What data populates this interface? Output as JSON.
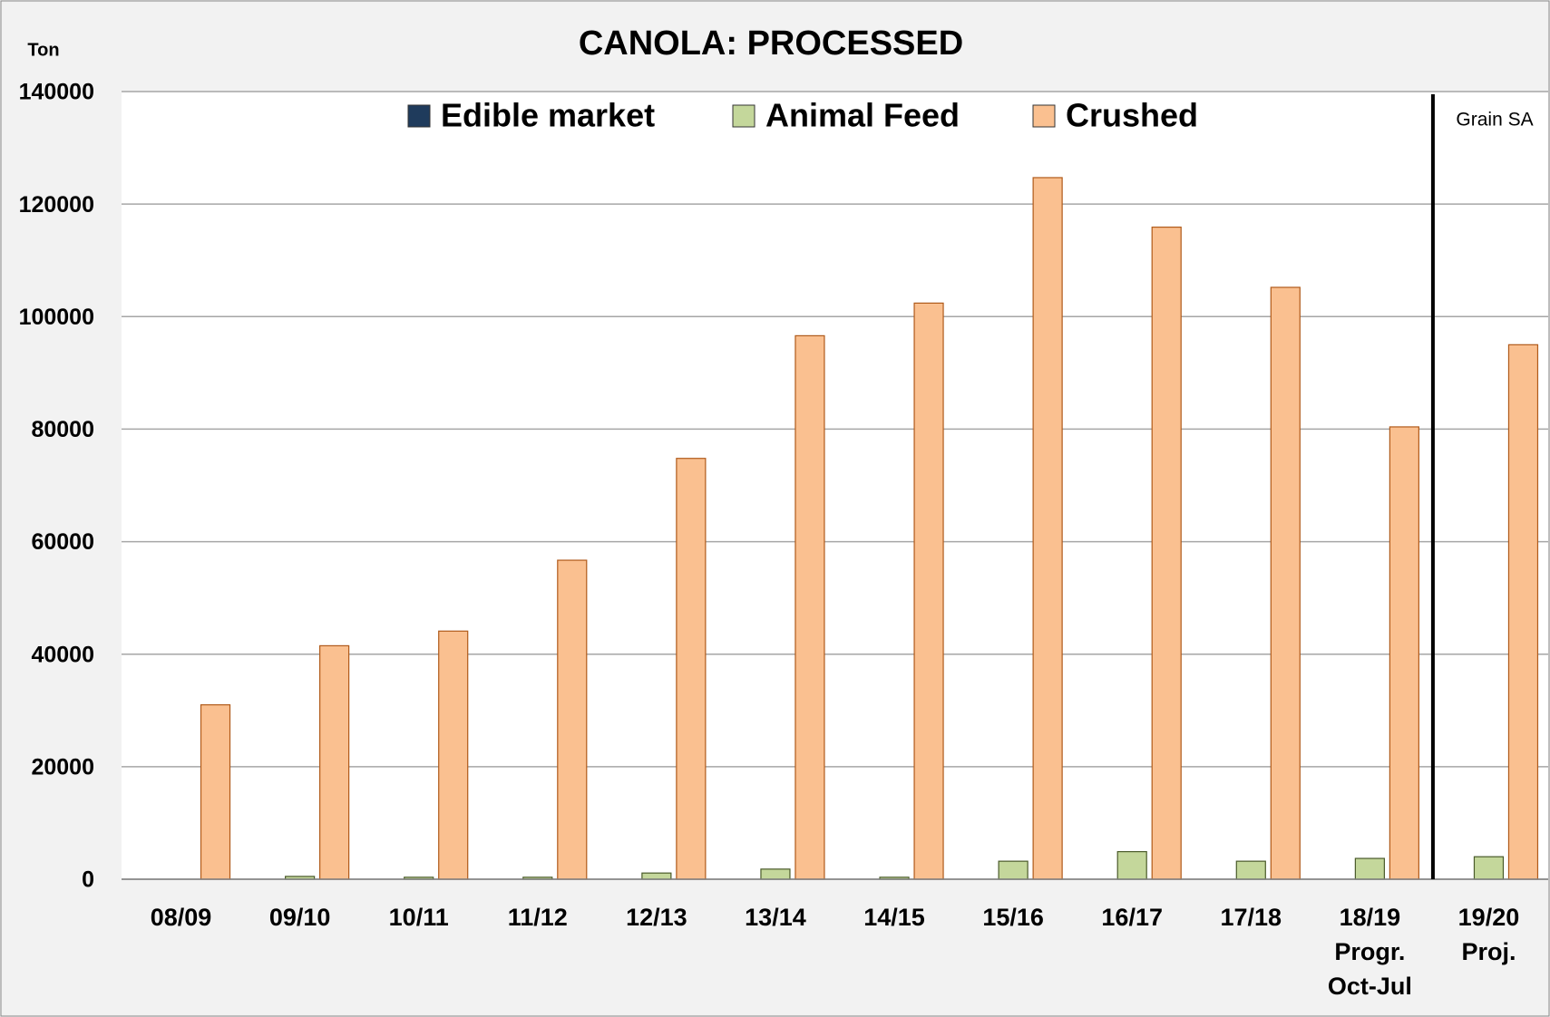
{
  "chart_data": {
    "type": "bar",
    "title": "CANOLA: PROCESSED",
    "y_axis_label": "Ton",
    "annotation": "Grain SA",
    "categories": [
      "08/09",
      "09/10",
      "10/11",
      "11/12",
      "12/13",
      "13/14",
      "14/15",
      "15/16",
      "16/17",
      "17/18",
      "18/19\nProgr.\nOct-Jul",
      "19/20\nProj."
    ],
    "series": [
      {
        "name": "Edible market",
        "color": "#1f3b5c",
        "values": [
          0,
          0,
          0,
          0,
          0,
          0,
          0,
          0,
          0,
          0,
          0,
          0
        ]
      },
      {
        "name": "Animal Feed",
        "color": "#c4d79b",
        "values": [
          0,
          500,
          350,
          350,
          1100,
          1800,
          350,
          3200,
          4900,
          3200,
          3700,
          4000
        ]
      },
      {
        "name": "Crushed",
        "color": "#fac090",
        "values": [
          31000,
          41500,
          44100,
          56700,
          74800,
          96600,
          102400,
          124700,
          115900,
          105200,
          80400,
          95000
        ]
      }
    ],
    "ylim": [
      0,
      140000
    ],
    "yticks": [
      0,
      20000,
      40000,
      60000,
      80000,
      100000,
      120000,
      140000
    ],
    "grid": true,
    "legend": "top"
  }
}
